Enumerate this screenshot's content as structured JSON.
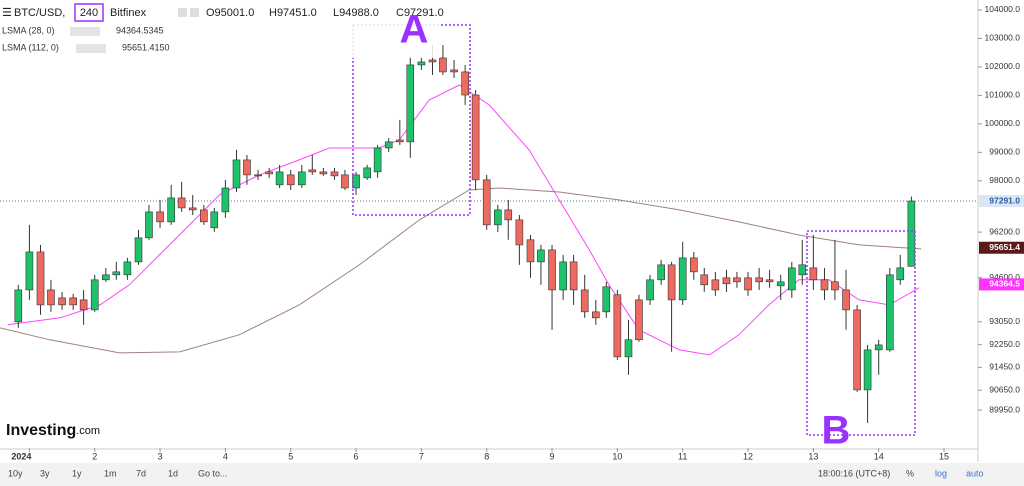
{
  "chart_data": {
    "type": "candlestick",
    "header": {
      "symbol": "BTC/USD,",
      "interval": "240",
      "exchange": "Bitfinex",
      "ohlc": [
        "O95001.0",
        "H97451.0",
        "L94988.0",
        "C97291.0"
      ]
    },
    "x": [
      0.83,
      1,
      1.17,
      1.33,
      1.5,
      1.67,
      1.83,
      2,
      2.17,
      2.33,
      2.5,
      2.67,
      2.83,
      3,
      3.17,
      3.33,
      3.5,
      3.67,
      3.83,
      4,
      4.17,
      4.33,
      4.5,
      4.67,
      4.83,
      5,
      5.17,
      5.33,
      5.5,
      5.67,
      5.83,
      6,
      6.17,
      6.33,
      6.5,
      6.67,
      6.83,
      7,
      7.17,
      7.33,
      7.5,
      7.67,
      7.83,
      8,
      8.17,
      8.33,
      8.5,
      8.67,
      8.83,
      9,
      9.17,
      9.33,
      9.5,
      9.67,
      9.83,
      10,
      10.17,
      10.33,
      10.5,
      10.67,
      10.83,
      11,
      11.17,
      11.33,
      11.5,
      11.67,
      11.83,
      12,
      12.17,
      12.33,
      12.5,
      12.67,
      12.83,
      13,
      13.17,
      13.33,
      13.5,
      13.67,
      13.83,
      14,
      14.17,
      14.33,
      14.5
    ],
    "open": [
      93050,
      94170,
      95505,
      94170,
      93890,
      93890,
      93820,
      93470,
      94525,
      94700,
      94700,
      95155,
      96000,
      96910,
      96560,
      97400,
      97050,
      96980,
      96350,
      96910,
      97750,
      98735,
      98210,
      98315,
      97860,
      98210,
      97860,
      98385,
      98315,
      98315,
      98210,
      97750,
      98105,
      98315,
      99155,
      99435,
      99370,
      102070,
      102245,
      102315,
      101895,
      101825,
      101015,
      98035,
      96455,
      96980,
      96630,
      95930,
      95155,
      95575,
      94170,
      95155,
      94170,
      93400,
      93400,
      94000,
      91820,
      93820,
      93820,
      94525,
      95050,
      93820,
      95295,
      94700,
      94525,
      94595,
      94595,
      94595,
      94595,
      94525,
      94315,
      94170,
      94700,
      94945,
      94525,
      94455,
      94170,
      93470,
      90660,
      92065,
      92065,
      94525,
      95001
    ],
    "high": [
      94350,
      96455,
      95750,
      94525,
      94100,
      94030,
      94170,
      94700,
      94945,
      95155,
      95295,
      96280,
      97155,
      97330,
      97860,
      97965,
      97505,
      97155,
      97050,
      98035,
      99085,
      98910,
      98385,
      98455,
      98560,
      98385,
      98560,
      98910,
      98455,
      98455,
      98385,
      98315,
      98560,
      99260,
      99505,
      100140,
      102420,
      102420,
      102770,
      102770,
      102245,
      102070,
      101190,
      98210,
      97155,
      97330,
      96800,
      96100,
      95750,
      95750,
      95400,
      95400,
      94700,
      93820,
      94455,
      94170,
      93120,
      94000,
      94700,
      95225,
      95155,
      95860,
      95505,
      94945,
      94805,
      94875,
      94805,
      94805,
      94945,
      94875,
      94700,
      95155,
      95930,
      96100,
      94945,
      95930,
      94875,
      93645,
      92240,
      92420,
      94945,
      95400,
      97451
    ],
    "low": [
      92840,
      93820,
      93295,
      93400,
      93470,
      93470,
      92945,
      93400,
      94455,
      94525,
      94525,
      95050,
      95930,
      96350,
      96455,
      96910,
      96800,
      96455,
      96210,
      96700,
      97610,
      97860,
      98035,
      98105,
      97750,
      97680,
      97750,
      98210,
      98175,
      98035,
      97680,
      97505,
      98035,
      98105,
      99015,
      99260,
      98805,
      101895,
      101720,
      101720,
      101615,
      100665,
      97680,
      96280,
      96210,
      95930,
      95050,
      94595,
      94350,
      92770,
      93820,
      93645,
      93190,
      92945,
      93190,
      91715,
      91190,
      92350,
      93645,
      94350,
      92000,
      93645,
      94525,
      94100,
      93960,
      94100,
      94245,
      93960,
      94170,
      94245,
      93820,
      93890,
      94350,
      94170,
      93820,
      93820,
      92770,
      90590,
      89500,
      91190,
      92000,
      94350,
      94988
    ],
    "close": [
      94170,
      95505,
      93645,
      93645,
      93645,
      93645,
      93470,
      94525,
      94700,
      94805,
      95155,
      96000,
      96910,
      96560,
      97400,
      97050,
      96980,
      96560,
      96910,
      97750,
      98735,
      98210,
      98175,
      98245,
      98315,
      97860,
      98315,
      98315,
      98245,
      98175,
      97750,
      98210,
      98455,
      99155,
      99370,
      99370,
      102070,
      102175,
      102175,
      101825,
      101825,
      101015,
      98035,
      96455,
      96980,
      96630,
      95750,
      95155,
      95575,
      94170,
      95155,
      94170,
      93400,
      93190,
      94280,
      91820,
      92420,
      92420,
      94525,
      95050,
      93820,
      95295,
      94805,
      94350,
      94170,
      94385,
      94455,
      94170,
      94455,
      94455,
      94455,
      94945,
      95050,
      94525,
      94170,
      94170,
      93470,
      90660,
      92065,
      92240,
      94700,
      94945,
      97291
    ],
    "up_color": "#1ec26a",
    "down_color": "#ee6a60",
    "overlays": [
      {
        "name": "LSMA (28, 0)",
        "color": "#ff44ff",
        "legend_value": {
          "value": 94364.5345,
          "label": "94364.5345"
        },
        "axis_label": "94364.5",
        "x": [
          0.67,
          1.47,
          2.08,
          2.53,
          2.99,
          3.45,
          3.91,
          4.52,
          5.13,
          5.59,
          6.35,
          6.66,
          7.12,
          7.58,
          8.04,
          8.65,
          9.11,
          9.57,
          9.87,
          10.33,
          10.95,
          11.41,
          11.86,
          12.32,
          12.78,
          13.24,
          13.7,
          14.16,
          14.62
        ],
        "values": [
          92945,
          93190,
          93645,
          94350,
          95400,
          96455,
          97505,
          98210,
          98735,
          99155,
          99155,
          99435,
          100840,
          101365,
          100665,
          99085,
          97330,
          95575,
          94350,
          92770,
          92065,
          91890,
          92595,
          93645,
          94525,
          94525,
          93820,
          93645,
          94245
        ]
      },
      {
        "name": "LSMA (112, 0)",
        "color": "#a08080",
        "legend_value": {
          "value": 95651.415,
          "label": "95651.4150"
        },
        "axis_label": "95651.4",
        "x": [
          0.55,
          1.31,
          2.38,
          3.3,
          4.21,
          5.13,
          6.05,
          6.97,
          7.73,
          8.19,
          9.11,
          10.02,
          10.95,
          11.86,
          12.78,
          13.7,
          14.65
        ],
        "values": [
          92840,
          92420,
          91960,
          91995,
          92595,
          93645,
          95050,
          96630,
          97680,
          97750,
          97610,
          97330,
          96980,
          96560,
          96100,
          95750,
          95610
        ]
      }
    ],
    "price_line": {
      "value": 97291,
      "label": "97291.0"
    },
    "xlim": [
      0.55,
      15.52
    ],
    "xticks": [
      {
        "value": 1,
        "label": "2024"
      },
      2,
      3,
      4,
      5,
      6,
      7,
      8,
      9,
      10,
      11,
      12,
      13,
      14,
      15
    ],
    "ylim": [
      88620,
      104350
    ],
    "yticks": [
      {
        "value": 104000,
        "label": "104000.0"
      },
      {
        "value": 103000,
        "label": "103000.0"
      },
      {
        "value": 102000,
        "label": "102000.0"
      },
      {
        "value": 101000,
        "label": "101000.0"
      },
      {
        "value": 100000,
        "label": "100000.0"
      },
      {
        "value": 99000,
        "label": "99000.0"
      },
      {
        "value": 98000,
        "label": "98000.0"
      },
      {
        "value": 96200,
        "label": "96200.0"
      },
      {
        "value": 94600,
        "label": "94600.0"
      },
      {
        "value": 93050,
        "label": "93050.0"
      },
      {
        "value": 92250,
        "label": "92250.0"
      },
      {
        "value": 91450,
        "label": "91450.0"
      },
      {
        "value": 90650,
        "label": "90650.0"
      },
      {
        "value": 89950,
        "label": "89950.0"
      }
    ],
    "annotations": [
      "A",
      "B"
    ],
    "logo": {
      "name": "Investing",
      "suffix": ".com"
    },
    "toolbar": {
      "ranges": [
        "10y",
        "3y",
        "1y",
        "1m",
        "7d",
        "1d"
      ],
      "goto": "Go to...",
      "time": "18:00:16 (UTC+8)",
      "options": [
        "%",
        "log",
        "auto"
      ]
    }
  }
}
